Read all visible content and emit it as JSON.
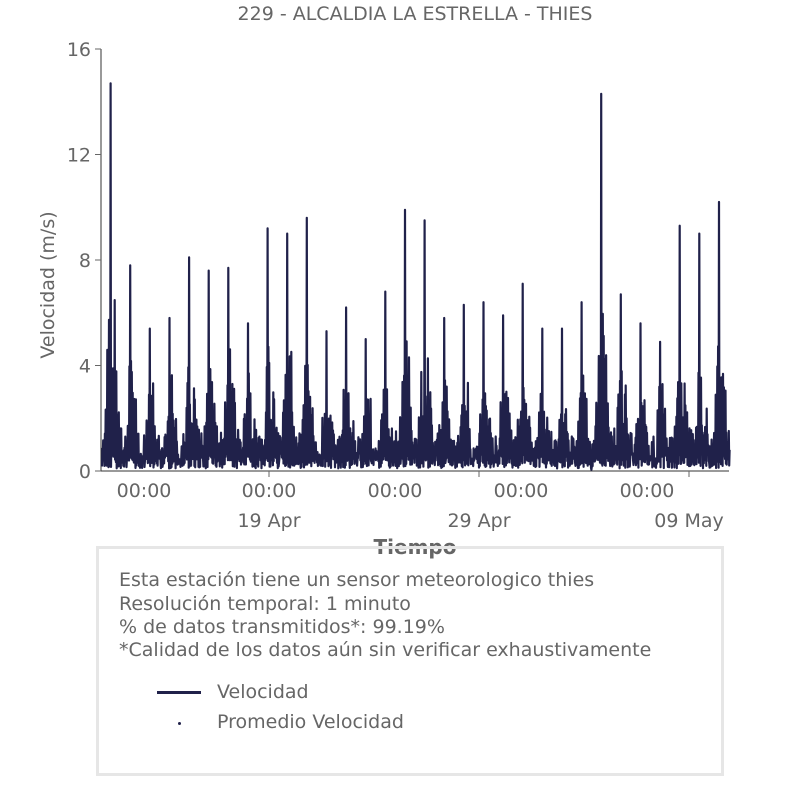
{
  "chart_data": {
    "type": "line",
    "title": "229 - ALCALDIA LA ESTRELLA - THIES",
    "xlabel": "Tiempo",
    "ylabel": "Velocidad (m/s)",
    "ylim": [
      0,
      16
    ],
    "yticks": [
      "0",
      "4",
      "8",
      "12",
      "16"
    ],
    "xticks": [
      "00:00",
      "00:00",
      "00:00",
      "00:00",
      "00:00"
    ],
    "xdate_labels": [
      "19 Apr",
      "29 Apr",
      "09 May"
    ],
    "grid": false,
    "series": [
      {
        "name": "Velocidad",
        "color": "#20214a",
        "x": [
          "2024-04-09",
          "2024-04-10",
          "2024-04-11",
          "2024-04-12",
          "2024-04-13",
          "2024-04-14",
          "2024-04-15",
          "2024-04-16",
          "2024-04-17",
          "2024-04-18",
          "2024-04-19",
          "2024-04-20",
          "2024-04-21",
          "2024-04-22",
          "2024-04-23",
          "2024-04-24",
          "2024-04-25",
          "2024-04-26",
          "2024-04-27",
          "2024-04-28",
          "2024-04-29",
          "2024-04-30",
          "2024-05-01",
          "2024-05-02",
          "2024-05-03",
          "2024-05-04",
          "2024-05-05",
          "2024-05-06",
          "2024-05-07",
          "2024-05-08",
          "2024-05-09",
          "2024-05-10"
        ],
        "daily_max": [
          14.7,
          7.8,
          5.4,
          5.8,
          8.1,
          7.6,
          7.7,
          5.6,
          9.2,
          9.0,
          9.6,
          5.3,
          6.2,
          5.0,
          6.8,
          9.9,
          9.5,
          5.8,
          6.3,
          6.4,
          5.9,
          7.1,
          5.4,
          5.4,
          6.4,
          14.3,
          6.7,
          5.6,
          4.9,
          9.3,
          9.0,
          10.2
        ],
        "daily_min": [
          0.1,
          0.1,
          0.1,
          0.1,
          0.1,
          0.1,
          0.1,
          0.1,
          0.1,
          0.1,
          0.1,
          0.1,
          0.1,
          0.1,
          0.1,
          0.1,
          0.1,
          0.1,
          0.1,
          0.1,
          0.1,
          0.1,
          0.1,
          0.1,
          0.1,
          0.1,
          0.1,
          0.1,
          0.1,
          0.1,
          0.1,
          0.1
        ]
      },
      {
        "name": "Promedio Velocidad",
        "color": "#20214a"
      }
    ],
    "legend": "bottom-box"
  },
  "info": {
    "line1": "Esta estación tiene un sensor meteorologico thies",
    "line2": "Resolución temporal: 1 minuto",
    "line3": "% de datos transmitidos*: 99.19%",
    "line4": "*Calidad de los datos aún sin verificar exhaustivamente"
  }
}
